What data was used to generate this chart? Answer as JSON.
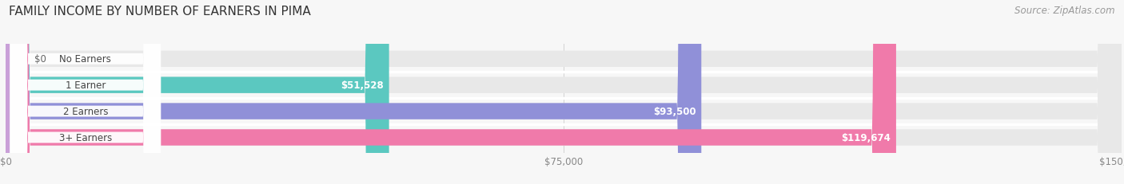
{
  "title": "FAMILY INCOME BY NUMBER OF EARNERS IN PIMA",
  "source": "Source: ZipAtlas.com",
  "categories": [
    "No Earners",
    "1 Earner",
    "2 Earners",
    "3+ Earners"
  ],
  "values": [
    0,
    51528,
    93500,
    119674
  ],
  "value_labels": [
    "$0",
    "$51,528",
    "$93,500",
    "$119,674"
  ],
  "bar_colors": [
    "#c9a0d8",
    "#5bc8c0",
    "#9090d8",
    "#f07aaa"
  ],
  "bar_track_color": "#e8e8e8",
  "xlim": [
    0,
    150000
  ],
  "xtick_labels": [
    "$0",
    "$75,000",
    "$150,000"
  ],
  "xtick_values": [
    0,
    75000,
    150000
  ],
  "title_fontsize": 11,
  "source_fontsize": 8.5,
  "label_fontsize": 8.5,
  "value_fontsize": 8.5,
  "background_color": "#f7f7f7",
  "bar_height": 0.62,
  "gap_color": "#ffffff"
}
